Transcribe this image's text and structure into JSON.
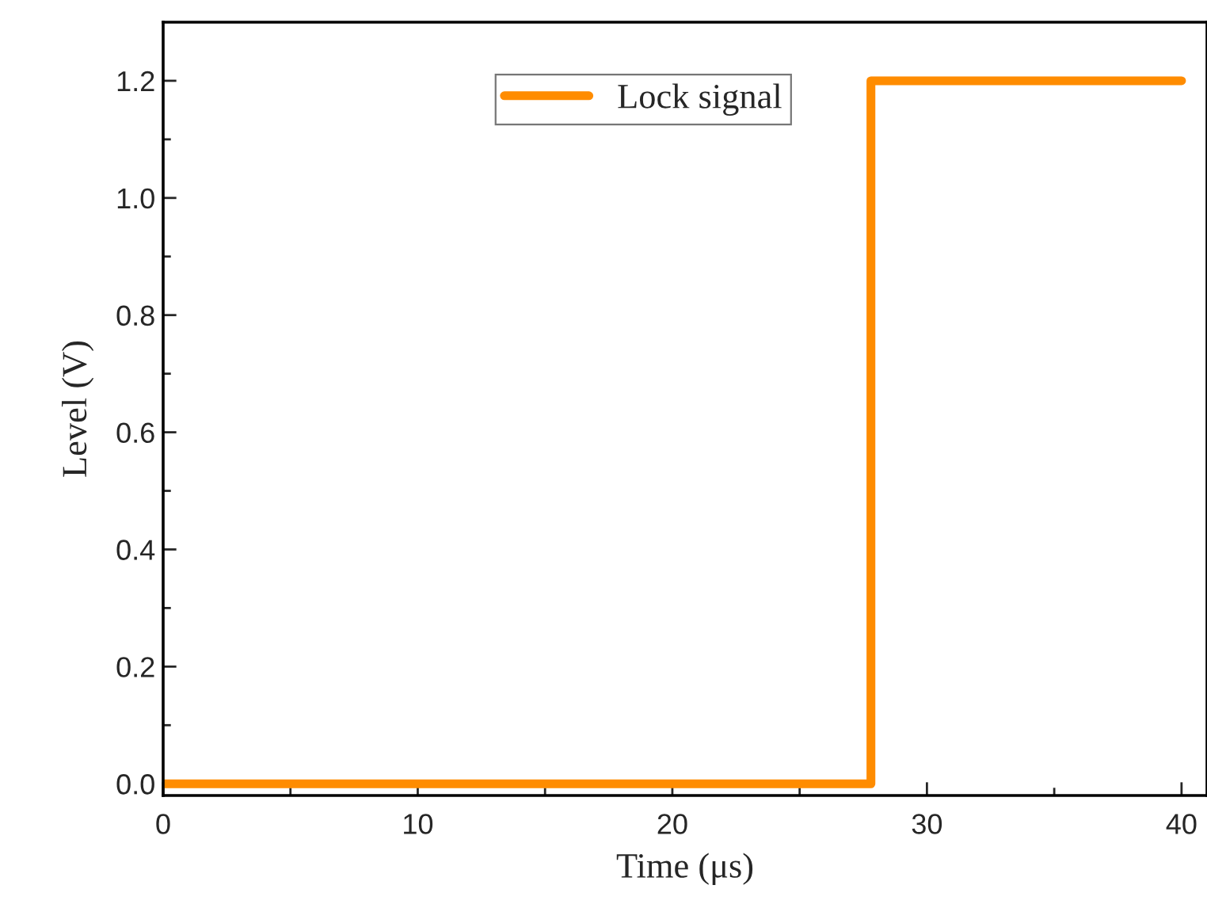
{
  "chart_data": {
    "type": "line",
    "xlabel": "Time (μs)",
    "ylabel": "Level (V)",
    "x": [
      0,
      27.8,
      27.8,
      40
    ],
    "series": [
      {
        "name": "Lock signal",
        "color": "#ff8c00",
        "values": [
          0,
          0,
          1.2,
          1.2
        ]
      }
    ],
    "xlim": [
      0,
      41
    ],
    "ylim": [
      -0.02,
      1.3
    ],
    "xticks": [
      0,
      10,
      20,
      30,
      40
    ],
    "yticks": [
      {
        "value": 0,
        "label": "0.0"
      },
      0.2,
      0.4,
      0.6,
      0.8,
      {
        "value": 1,
        "label": "1.0"
      },
      1.2
    ],
    "grid": false,
    "legend": "top",
    "marker": "none",
    "line_style": "solid"
  }
}
